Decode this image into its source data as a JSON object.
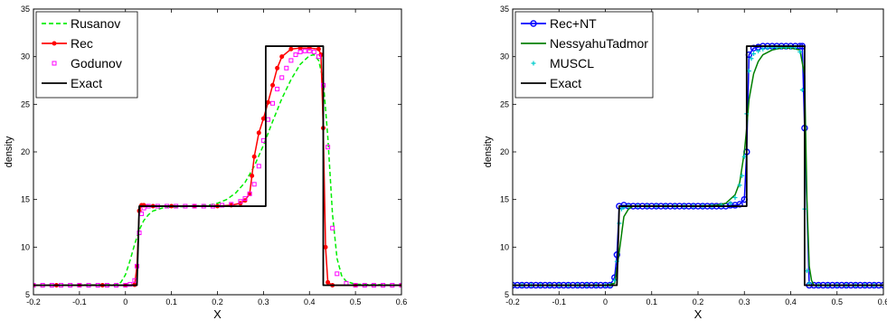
{
  "chart_data": [
    {
      "type": "line",
      "title": "",
      "xlabel": "X",
      "ylabel": "density",
      "xlim": [
        -0.2,
        0.6
      ],
      "ylim": [
        5,
        35
      ],
      "xticks": [
        "-0.2",
        "-0.1",
        "0",
        "0.1",
        "0.2",
        "0.3",
        "0.4",
        "0.5",
        "0.6"
      ],
      "yticks": [
        "5",
        "10",
        "15",
        "20",
        "25",
        "30",
        "35"
      ],
      "grid": false,
      "legend_position": "top-left",
      "series": [
        {
          "name": "Rusanov",
          "color": "#00ee00",
          "style": "dashed",
          "marker": "none",
          "x": [
            -0.2,
            -0.02,
            -0.01,
            0.0,
            0.01,
            0.02,
            0.03,
            0.04,
            0.05,
            0.06,
            0.08,
            0.1,
            0.14,
            0.18,
            0.2,
            0.22,
            0.24,
            0.26,
            0.28,
            0.3,
            0.32,
            0.34,
            0.36,
            0.38,
            0.4,
            0.41,
            0.42,
            0.43,
            0.44,
            0.45,
            0.46,
            0.47,
            0.48,
            0.5,
            0.6
          ],
          "y": [
            6.0,
            6.05,
            6.3,
            7.1,
            8.6,
            10.3,
            11.8,
            12.8,
            13.4,
            13.8,
            14.1,
            14.2,
            14.3,
            14.4,
            14.6,
            15.0,
            15.7,
            16.8,
            18.5,
            20.7,
            23.2,
            25.6,
            27.6,
            29.2,
            30.1,
            30.2,
            29.6,
            27.5,
            21.5,
            13.5,
            8.8,
            7.0,
            6.4,
            6.1,
            6.0
          ]
        },
        {
          "name": "Rec",
          "color": "#ff0000",
          "style": "solid",
          "marker": "dot",
          "x": [
            -0.2,
            -0.15,
            -0.1,
            -0.05,
            0.0,
            0.02,
            0.025,
            0.03,
            0.035,
            0.04,
            0.06,
            0.1,
            0.15,
            0.2,
            0.23,
            0.25,
            0.26,
            0.27,
            0.275,
            0.28,
            0.29,
            0.3,
            0.31,
            0.32,
            0.33,
            0.34,
            0.36,
            0.38,
            0.4,
            0.42,
            0.425,
            0.43,
            0.435,
            0.44,
            0.45,
            0.5,
            0.6
          ],
          "y": [
            6.0,
            6.0,
            6.0,
            6.0,
            6.0,
            6.05,
            8.0,
            13.8,
            14.4,
            14.4,
            14.3,
            14.3,
            14.3,
            14.3,
            14.4,
            14.6,
            14.9,
            15.6,
            17.5,
            19.5,
            22.0,
            23.5,
            25.2,
            27.0,
            28.8,
            30.0,
            30.8,
            30.9,
            30.9,
            30.8,
            30.2,
            22.5,
            10.0,
            6.3,
            6.0,
            6.0,
            6.0
          ]
        },
        {
          "name": "Godunov",
          "color": "#ff00ff",
          "style": "none",
          "marker": "square",
          "x": [
            -0.2,
            -0.18,
            -0.16,
            -0.14,
            -0.12,
            -0.1,
            -0.08,
            -0.06,
            -0.04,
            -0.02,
            0.0,
            0.01,
            0.02,
            0.025,
            0.03,
            0.035,
            0.04,
            0.05,
            0.07,
            0.09,
            0.11,
            0.13,
            0.15,
            0.17,
            0.19,
            0.21,
            0.23,
            0.25,
            0.26,
            0.27,
            0.28,
            0.29,
            0.3,
            0.31,
            0.32,
            0.33,
            0.34,
            0.35,
            0.36,
            0.37,
            0.38,
            0.39,
            0.4,
            0.41,
            0.42,
            0.43,
            0.44,
            0.45,
            0.46,
            0.48,
            0.5,
            0.52,
            0.54,
            0.56,
            0.58,
            0.6
          ],
          "y": [
            6.0,
            6.0,
            6.0,
            6.0,
            6.0,
            6.0,
            6.0,
            6.0,
            6.0,
            6.0,
            6.0,
            6.1,
            6.5,
            8.0,
            11.5,
            13.5,
            14.1,
            14.3,
            14.3,
            14.3,
            14.3,
            14.3,
            14.3,
            14.3,
            14.3,
            14.4,
            14.5,
            14.8,
            15.1,
            15.6,
            16.6,
            18.5,
            21.2,
            23.4,
            25.1,
            26.6,
            27.8,
            28.8,
            29.6,
            30.2,
            30.5,
            30.6,
            30.6,
            30.5,
            30.0,
            27.0,
            20.5,
            12.0,
            7.2,
            6.2,
            6.0,
            6.0,
            6.0,
            6.0,
            6.0,
            6.0
          ]
        },
        {
          "name": "Exact",
          "color": "#000000",
          "style": "solid",
          "marker": "none",
          "x": [
            -0.2,
            0.025,
            0.03,
            0.305,
            0.305,
            0.43,
            0.43,
            0.6
          ],
          "y": [
            6.0,
            6.0,
            14.3,
            14.3,
            31.1,
            31.1,
            6.0,
            6.0
          ]
        }
      ]
    },
    {
      "type": "line",
      "title": "",
      "xlabel": "X",
      "ylabel": "density",
      "xlim": [
        -0.2,
        0.6
      ],
      "ylim": [
        5,
        35
      ],
      "xticks": [
        "-0.2",
        "-0.1",
        "0",
        "0.1",
        "0.2",
        "0.3",
        "0.4",
        "0.5",
        "0.6"
      ],
      "yticks": [
        "5",
        "10",
        "15",
        "20",
        "25",
        "30",
        "35"
      ],
      "grid": false,
      "legend_position": "top-left",
      "series": [
        {
          "name": "Rec+NT",
          "color": "#0000ff",
          "style": "solid",
          "marker": "circle",
          "x": [
            -0.2,
            -0.19,
            -0.18,
            -0.17,
            -0.16,
            -0.15,
            -0.14,
            -0.13,
            -0.12,
            -0.11,
            -0.1,
            -0.09,
            -0.08,
            -0.07,
            -0.06,
            -0.05,
            -0.04,
            -0.03,
            -0.02,
            -0.01,
            0.0,
            0.01,
            0.02,
            0.025,
            0.03,
            0.04,
            0.05,
            0.06,
            0.07,
            0.08,
            0.09,
            0.1,
            0.11,
            0.12,
            0.13,
            0.14,
            0.15,
            0.16,
            0.17,
            0.18,
            0.19,
            0.2,
            0.21,
            0.22,
            0.23,
            0.24,
            0.25,
            0.26,
            0.27,
            0.28,
            0.29,
            0.3,
            0.305,
            0.31,
            0.32,
            0.33,
            0.34,
            0.35,
            0.36,
            0.37,
            0.38,
            0.39,
            0.4,
            0.41,
            0.42,
            0.425,
            0.43,
            0.44,
            0.45,
            0.46,
            0.47,
            0.48,
            0.49,
            0.5,
            0.51,
            0.52,
            0.53,
            0.54,
            0.55,
            0.56,
            0.57,
            0.58,
            0.59,
            0.6
          ],
          "y": [
            6.0,
            6.0,
            6.0,
            6.0,
            6.0,
            6.0,
            6.0,
            6.0,
            6.0,
            6.0,
            6.0,
            6.0,
            6.0,
            6.0,
            6.0,
            6.0,
            6.0,
            6.0,
            6.0,
            6.0,
            6.0,
            6.0,
            6.8,
            9.2,
            14.3,
            14.4,
            14.3,
            14.3,
            14.3,
            14.3,
            14.3,
            14.3,
            14.3,
            14.3,
            14.3,
            14.3,
            14.3,
            14.3,
            14.3,
            14.3,
            14.3,
            14.3,
            14.3,
            14.3,
            14.3,
            14.3,
            14.3,
            14.3,
            14.4,
            14.4,
            14.5,
            15.0,
            20.0,
            30.2,
            30.9,
            31.0,
            31.1,
            31.1,
            31.1,
            31.1,
            31.1,
            31.1,
            31.1,
            31.1,
            31.1,
            31.1,
            22.5,
            6.0,
            6.0,
            6.0,
            6.0,
            6.0,
            6.0,
            6.0,
            6.0,
            6.0,
            6.0,
            6.0,
            6.0,
            6.0,
            6.0,
            6.0,
            6.0,
            6.0
          ]
        },
        {
          "name": "NessyahuTadmor",
          "color": "#008000",
          "style": "solid",
          "marker": "none",
          "x": [
            -0.2,
            0.0,
            0.02,
            0.03,
            0.04,
            0.05,
            0.06,
            0.08,
            0.1,
            0.15,
            0.2,
            0.24,
            0.26,
            0.28,
            0.29,
            0.3,
            0.305,
            0.31,
            0.32,
            0.33,
            0.34,
            0.36,
            0.38,
            0.4,
            0.42,
            0.43,
            0.435,
            0.44,
            0.445,
            0.45,
            0.6
          ],
          "y": [
            6.0,
            6.0,
            6.2,
            9.5,
            13.2,
            14.0,
            14.3,
            14.3,
            14.3,
            14.3,
            14.3,
            14.4,
            14.6,
            15.5,
            16.8,
            20.0,
            22.5,
            25.5,
            28.2,
            29.5,
            30.2,
            30.7,
            30.9,
            30.9,
            30.7,
            28.0,
            15.0,
            8.0,
            6.5,
            6.0,
            6.0
          ]
        },
        {
          "name": "MUSCL",
          "color": "#00cccc",
          "style": "none",
          "marker": "plus",
          "x": [
            -0.2,
            -0.18,
            -0.16,
            -0.14,
            -0.12,
            -0.1,
            -0.08,
            -0.06,
            -0.04,
            -0.02,
            0.0,
            0.01,
            0.02,
            0.025,
            0.03,
            0.035,
            0.04,
            0.05,
            0.07,
            0.09,
            0.11,
            0.13,
            0.15,
            0.17,
            0.19,
            0.21,
            0.23,
            0.25,
            0.27,
            0.28,
            0.29,
            0.295,
            0.3,
            0.305,
            0.31,
            0.315,
            0.32,
            0.33,
            0.34,
            0.35,
            0.36,
            0.37,
            0.38,
            0.39,
            0.4,
            0.41,
            0.42,
            0.425,
            0.43,
            0.435,
            0.44,
            0.46,
            0.48,
            0.5,
            0.52,
            0.54,
            0.56,
            0.58,
            0.6
          ],
          "y": [
            6.0,
            6.0,
            6.0,
            6.0,
            6.0,
            6.0,
            6.0,
            6.0,
            6.0,
            6.0,
            6.0,
            6.0,
            6.5,
            8.5,
            12.5,
            14.0,
            14.2,
            14.3,
            14.3,
            14.3,
            14.3,
            14.3,
            14.3,
            14.3,
            14.3,
            14.3,
            14.3,
            14.4,
            14.6,
            15.2,
            16.5,
            17.5,
            19.5,
            24.0,
            28.5,
            29.8,
            30.3,
            30.6,
            30.8,
            30.9,
            31.0,
            31.0,
            31.0,
            31.0,
            31.0,
            31.0,
            30.5,
            26.5,
            14.0,
            7.5,
            6.2,
            6.0,
            6.0,
            6.0,
            6.0,
            6.0,
            6.0,
            6.0,
            6.0
          ]
        },
        {
          "name": "Exact",
          "color": "#000000",
          "style": "solid",
          "marker": "none",
          "x": [
            -0.2,
            0.025,
            0.03,
            0.305,
            0.305,
            0.43,
            0.43,
            0.6
          ],
          "y": [
            6.0,
            6.0,
            14.3,
            14.3,
            31.1,
            31.1,
            6.0,
            6.0
          ]
        }
      ]
    }
  ]
}
